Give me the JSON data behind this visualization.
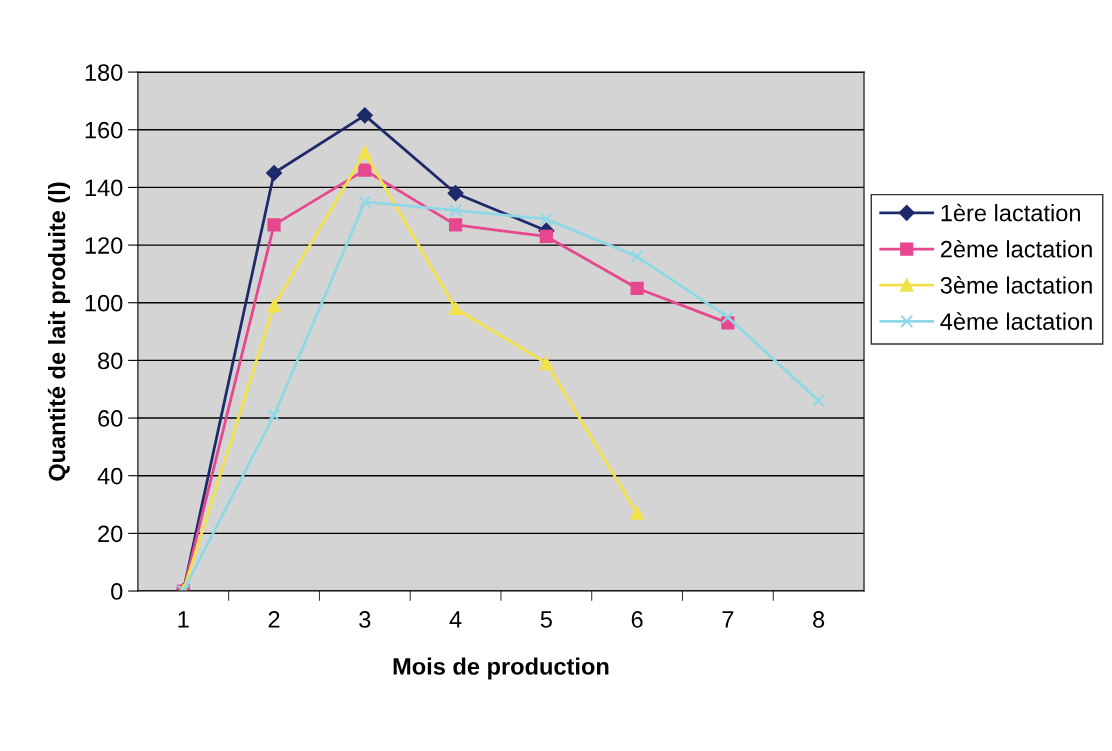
{
  "chart_data": {
    "type": "line",
    "xlabel": "Mois de production",
    "ylabel": "Quantité de lait produite (l)",
    "categories": [
      "1",
      "2",
      "3",
      "4",
      "5",
      "6",
      "7",
      "8"
    ],
    "series": [
      {
        "name": "1ère lactation",
        "color": "#1f2a6b",
        "marker": "diamond",
        "values": [
          0,
          145,
          165,
          138,
          125,
          null,
          null,
          null
        ]
      },
      {
        "name": "2ème lactation",
        "color": "#e6478f",
        "marker": "square",
        "values": [
          0,
          127,
          146,
          127,
          123,
          105,
          93,
          null
        ]
      },
      {
        "name": "3ème lactation",
        "color": "#f2e24a",
        "marker": "triangle",
        "values": [
          0,
          99,
          152,
          98,
          79,
          27,
          null,
          null
        ]
      },
      {
        "name": "4ème lactation",
        "color": "#8fd8e6",
        "marker": "cross",
        "values": [
          0,
          61,
          135,
          132,
          129,
          116,
          95,
          66
        ]
      }
    ],
    "ylim": [
      0,
      180
    ],
    "yticks": [
      0,
      20,
      40,
      60,
      80,
      100,
      120,
      140,
      160,
      180
    ],
    "grid": "y",
    "legend": "right"
  }
}
